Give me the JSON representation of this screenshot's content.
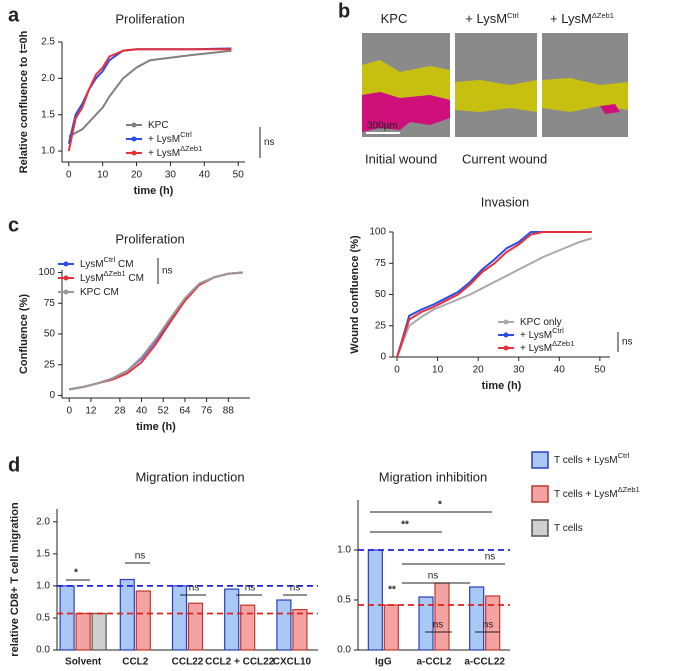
{
  "chart_data": [
    {
      "type": "line",
      "panel": "a",
      "title": "Proliferation",
      "xlabel": "time (h)",
      "ylabel": "Relative confluence to t=0h",
      "x": [
        0,
        2,
        4,
        6,
        8,
        10,
        12,
        16,
        20,
        24,
        36,
        48
      ],
      "series": [
        {
          "name": "KPC",
          "color": "#808080",
          "values": [
            1.2,
            1.25,
            1.3,
            1.4,
            1.5,
            1.6,
            1.75,
            2.0,
            2.15,
            2.25,
            2.32,
            2.38
          ]
        },
        {
          "name": "+ LysM",
          "sup": "Ctrl",
          "color": "#2b4ee8",
          "values": [
            1.1,
            1.5,
            1.65,
            1.85,
            2.0,
            2.1,
            2.25,
            2.38,
            2.4,
            2.4,
            2.4,
            2.41
          ]
        },
        {
          "name": "+ LysM",
          "sup": "ΔZeb1",
          "color": "#e8303a",
          "values": [
            1.0,
            1.45,
            1.6,
            1.85,
            2.05,
            2.15,
            2.3,
            2.38,
            2.4,
            2.4,
            2.4,
            2.4
          ]
        }
      ],
      "annotations": [
        {
          "text": "ns",
          "color": "#222"
        }
      ],
      "xlim": [
        -2,
        52
      ],
      "xticks": [
        0,
        10,
        20,
        30,
        40,
        50
      ],
      "ylim": [
        0.85,
        2.5
      ],
      "yticks": [
        {
          "value": 1,
          "label": "1.0"
        },
        {
          "value": 1.5,
          "label": "1.5"
        },
        {
          "value": 2,
          "label": "2.0"
        },
        {
          "value": 2.5,
          "label": "2.5"
        }
      ]
    },
    {
      "type": "line",
      "title": "Invasion",
      "xlabel": "time (h)",
      "ylabel": "Wound confluence (%)",
      "x": [
        0,
        3,
        6,
        9,
        12,
        15,
        18,
        21,
        24,
        27,
        30,
        33,
        36,
        39,
        42,
        45,
        48
      ],
      "series": [
        {
          "name": "KPC only",
          "color": "#aaaaaa",
          "values": [
            0,
            25,
            32,
            38,
            42,
            46,
            50,
            55,
            60,
            65,
            70,
            75,
            80,
            84,
            88,
            92,
            95
          ]
        },
        {
          "name": "+ LysM",
          "sup": "Ctrl",
          "color": "#2b4ee8",
          "values": [
            0,
            33,
            38,
            42,
            47,
            52,
            60,
            70,
            78,
            87,
            92,
            100,
            100,
            100,
            100,
            100,
            100
          ]
        },
        {
          "name": "+ LysM",
          "sup": "ΔZeb1",
          "color": "#e8303a",
          "values": [
            0,
            30,
            36,
            40,
            45,
            50,
            58,
            68,
            75,
            84,
            90,
            98,
            100,
            100,
            100,
            100,
            100
          ]
        }
      ],
      "annotations": [
        {
          "text": "ns",
          "color": "#222"
        }
      ],
      "xlim": [
        -1,
        52.5
      ],
      "xticks": [
        0,
        10,
        20,
        30,
        40,
        50
      ],
      "ylim": [
        0,
        100
      ],
      "yticks": [
        0,
        25,
        50,
        75,
        100
      ]
    },
    {
      "type": "line",
      "panel": "c",
      "title": "Proliferation",
      "xlabel": "time (h)",
      "ylabel": "Confluence (%)",
      "x": [
        0,
        8,
        16,
        24,
        32,
        40,
        48,
        56,
        64,
        72,
        80,
        88,
        96
      ],
      "series": [
        {
          "name": "LysM",
          "sup": "Ctrl",
          "post": " CM",
          "color": "#2b4ee8",
          "values": [
            5,
            7,
            10,
            14,
            20,
            30,
            45,
            62,
            78,
            90,
            96,
            99,
            100
          ]
        },
        {
          "name": "LysM",
          "sup": "ΔZeb1",
          "post": " CM",
          "color": "#e8303a",
          "values": [
            5,
            7,
            10,
            13,
            18,
            27,
            42,
            60,
            77,
            90,
            96,
            99,
            100
          ]
        },
        {
          "name": "KPC CM",
          "color": "#999999",
          "values": [
            5,
            7,
            10,
            14,
            20,
            31,
            46,
            63,
            79,
            91,
            96,
            99,
            100
          ]
        }
      ],
      "annotations": [
        {
          "text": "ns",
          "color": "#222"
        }
      ],
      "xlim": [
        -4,
        100
      ],
      "xticks": [
        0,
        12,
        28,
        40,
        52,
        64,
        76,
        88
      ],
      "ylim": [
        -2,
        102
      ],
      "yticks": [
        0,
        25,
        50,
        75,
        100
      ]
    },
    {
      "type": "bar",
      "panel": "d",
      "title": "Migration induction",
      "ylabel": "relative CD8+ T cell migration",
      "categories": [
        "Solvent",
        "CCL2",
        "CCL22",
        "CCL2 + CCL22",
        "CXCL10"
      ],
      "series": [
        {
          "name": "T cells + LysM",
          "sup": "Ctrl",
          "color": "#a9c8f3",
          "edgecolor": "#2a3fbf",
          "values": [
            1.0,
            1.1,
            1.0,
            0.95,
            0.78
          ]
        },
        {
          "name": "T cells + LysM",
          "sup": "ΔZeb1",
          "color": "#f4a3a3",
          "edgecolor": "#c0392b",
          "values": [
            0.57,
            0.92,
            0.73,
            0.7,
            0.63
          ]
        },
        {
          "name": "T cells",
          "color": "#cfcfcf",
          "edgecolor": "#555555",
          "values": [
            0.57,
            null,
            null,
            null,
            null
          ]
        }
      ],
      "ref_lines": [
        {
          "value": 1.0,
          "color": "#1f1fe0"
        },
        {
          "value": 0.57,
          "color": "#e01f1f"
        }
      ],
      "annotations": [
        {
          "text": "*",
          "color": "#111"
        },
        {
          "text": "ns",
          "color": "#222"
        },
        {
          "text": "ns",
          "color": "#222"
        },
        {
          "text": "ns",
          "color": "#222"
        },
        {
          "text": "ns",
          "color": "#222"
        }
      ],
      "ylim": [
        0,
        2.2
      ],
      "yticks": [
        {
          "value": 0,
          "label": "0.0"
        },
        {
          "value": 0.5,
          "label": "0.5"
        },
        {
          "value": 1,
          "label": "1.0"
        },
        {
          "value": 1.5,
          "label": "1.5"
        },
        {
          "value": 2,
          "label": "2.0"
        }
      ]
    },
    {
      "type": "bar",
      "title": "Migration inhibition",
      "categories": [
        "IgG",
        "a-CCL2",
        "a-CCL22"
      ],
      "series": [
        {
          "color": "#a9c8f3",
          "edgecolor": "#2a3fbf",
          "values": [
            1.0,
            0.53,
            0.63
          ]
        },
        {
          "color": "#f4a3a3",
          "edgecolor": "#c0392b",
          "values": [
            0.45,
            0.67,
            0.54
          ]
        }
      ],
      "ref_lines": [
        {
          "value": 1.0,
          "color": "#1f1fe0"
        },
        {
          "value": 0.45,
          "color": "#e01f1f"
        }
      ],
      "annotations": [
        {
          "text": "*",
          "color": "#1f1fe0"
        },
        {
          "text": "**",
          "color": "#1f1fe0"
        },
        {
          "text": "ns",
          "color": "#e01f1f"
        },
        {
          "text": "ns",
          "color": "#e01f1f"
        },
        {
          "text": "**",
          "color": "#111"
        },
        {
          "text": "ns",
          "color": "#222"
        },
        {
          "text": "ns",
          "color": "#222"
        }
      ],
      "ylim": [
        0,
        1.5
      ],
      "yticks": [
        {
          "value": 0,
          "label": "0.0"
        },
        {
          "value": 0.5,
          "label": "0.5"
        },
        {
          "value": 1,
          "label": "1.0"
        }
      ]
    }
  ],
  "images": {
    "panel": "b",
    "columns": [
      {
        "name": "KPC"
      },
      {
        "name": "+ LysM",
        "sup": "Ctrl"
      },
      {
        "name": "+ LysM",
        "sup": "ΔZeb1"
      }
    ],
    "scale_bar": "300µm",
    "legend": [
      {
        "name": "Initial wound",
        "color": "#b3ad00"
      },
      {
        "name": "Current wound",
        "color": "#c8157a"
      }
    ]
  }
}
